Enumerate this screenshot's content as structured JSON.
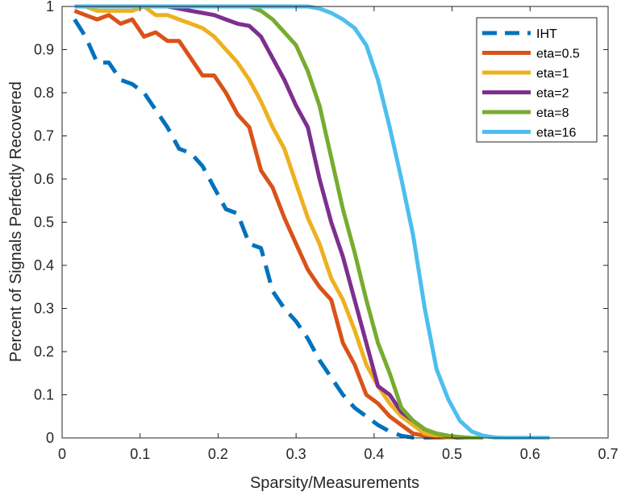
{
  "chart_data": {
    "type": "line",
    "title": "",
    "xlabel": "Sparsity/Measurements",
    "ylabel": "Percent of Signals Perfectly Recovered",
    "xlim": [
      0,
      0.7
    ],
    "ylim": [
      0,
      1
    ],
    "xticks": [
      0,
      0.1,
      0.2,
      0.3,
      0.4,
      0.5,
      0.6,
      0.7
    ],
    "yticks": [
      0,
      0.1,
      0.2,
      0.3,
      0.4,
      0.5,
      0.6,
      0.7,
      0.8,
      0.9,
      1
    ],
    "xtick_labels": [
      "0",
      "0.1",
      "0.2",
      "0.3",
      "0.4",
      "0.5",
      "0.6",
      "0.7"
    ],
    "ytick_labels": [
      "0",
      "0.1",
      "0.2",
      "0.3",
      "0.4",
      "0.5",
      "0.6",
      "0.7",
      "0.8",
      "0.9",
      "1"
    ],
    "grid": false,
    "legend_position": "top-right",
    "series": [
      {
        "name": "IHT",
        "color": "#0072BD",
        "dash": "dashed",
        "x": [
          0.016,
          0.03,
          0.045,
          0.06,
          0.075,
          0.09,
          0.105,
          0.12,
          0.135,
          0.15,
          0.165,
          0.18,
          0.195,
          0.21,
          0.225,
          0.24,
          0.255,
          0.27,
          0.285,
          0.3,
          0.315,
          0.33,
          0.345,
          0.36,
          0.375,
          0.39,
          0.405,
          0.42,
          0.435,
          0.45,
          0.465,
          0.48
        ],
        "y": [
          0.97,
          0.93,
          0.87,
          0.87,
          0.83,
          0.82,
          0.8,
          0.76,
          0.72,
          0.67,
          0.66,
          0.63,
          0.58,
          0.53,
          0.52,
          0.45,
          0.44,
          0.34,
          0.3,
          0.27,
          0.23,
          0.18,
          0.14,
          0.1,
          0.07,
          0.05,
          0.03,
          0.015,
          0.005,
          0.001,
          0,
          0
        ]
      },
      {
        "name": "eta=0.5",
        "color": "#D95319",
        "dash": "solid",
        "x": [
          0.016,
          0.03,
          0.045,
          0.06,
          0.075,
          0.09,
          0.105,
          0.12,
          0.135,
          0.15,
          0.165,
          0.18,
          0.195,
          0.21,
          0.225,
          0.24,
          0.255,
          0.27,
          0.285,
          0.3,
          0.315,
          0.33,
          0.345,
          0.36,
          0.375,
          0.39,
          0.405,
          0.42,
          0.435,
          0.45,
          0.465,
          0.48,
          0.495
        ],
        "y": [
          0.99,
          0.98,
          0.97,
          0.98,
          0.96,
          0.97,
          0.93,
          0.94,
          0.92,
          0.92,
          0.88,
          0.84,
          0.84,
          0.8,
          0.75,
          0.72,
          0.62,
          0.58,
          0.51,
          0.45,
          0.39,
          0.35,
          0.32,
          0.22,
          0.17,
          0.1,
          0.08,
          0.05,
          0.03,
          0.01,
          0.005,
          0,
          0
        ]
      },
      {
        "name": "eta=1",
        "color": "#EDB120",
        "dash": "solid",
        "x": [
          0.016,
          0.03,
          0.045,
          0.06,
          0.075,
          0.09,
          0.105,
          0.12,
          0.135,
          0.15,
          0.165,
          0.18,
          0.195,
          0.21,
          0.225,
          0.24,
          0.255,
          0.27,
          0.285,
          0.3,
          0.315,
          0.33,
          0.345,
          0.36,
          0.375,
          0.39,
          0.405,
          0.42,
          0.435,
          0.45,
          0.465,
          0.48,
          0.495,
          0.51
        ],
        "y": [
          1,
          1,
          0.99,
          0.99,
          0.99,
          0.99,
          1,
          0.98,
          0.98,
          0.97,
          0.96,
          0.95,
          0.93,
          0.9,
          0.87,
          0.83,
          0.78,
          0.72,
          0.67,
          0.59,
          0.51,
          0.45,
          0.37,
          0.32,
          0.25,
          0.17,
          0.12,
          0.08,
          0.05,
          0.03,
          0.01,
          0.005,
          0,
          0
        ]
      },
      {
        "name": "eta=2",
        "color": "#7E2F8E",
        "dash": "solid",
        "x": [
          0.016,
          0.03,
          0.045,
          0.06,
          0.075,
          0.09,
          0.105,
          0.12,
          0.135,
          0.15,
          0.165,
          0.18,
          0.195,
          0.21,
          0.225,
          0.24,
          0.255,
          0.27,
          0.285,
          0.3,
          0.315,
          0.33,
          0.345,
          0.36,
          0.375,
          0.39,
          0.405,
          0.42,
          0.435,
          0.45,
          0.465,
          0.48,
          0.495,
          0.51,
          0.525
        ],
        "y": [
          1,
          1,
          1,
          1,
          1,
          1,
          1,
          1,
          1,
          0.995,
          0.99,
          0.985,
          0.98,
          0.97,
          0.96,
          0.955,
          0.93,
          0.88,
          0.83,
          0.77,
          0.72,
          0.6,
          0.5,
          0.42,
          0.32,
          0.22,
          0.12,
          0.1,
          0.06,
          0.04,
          0.02,
          0.01,
          0.005,
          0,
          0
        ]
      },
      {
        "name": "eta=8",
        "color": "#77AC30",
        "dash": "solid",
        "x": [
          0.016,
          0.03,
          0.045,
          0.06,
          0.075,
          0.09,
          0.105,
          0.12,
          0.135,
          0.15,
          0.165,
          0.18,
          0.195,
          0.21,
          0.225,
          0.24,
          0.255,
          0.27,
          0.285,
          0.3,
          0.315,
          0.33,
          0.345,
          0.36,
          0.375,
          0.39,
          0.405,
          0.42,
          0.435,
          0.45,
          0.465,
          0.48,
          0.495,
          0.51,
          0.525,
          0.54
        ],
        "y": [
          1,
          1,
          1,
          1,
          1,
          1,
          1,
          1,
          1,
          1,
          1,
          1,
          1,
          1,
          1,
          1,
          0.99,
          0.97,
          0.94,
          0.91,
          0.85,
          0.77,
          0.65,
          0.53,
          0.43,
          0.32,
          0.22,
          0.15,
          0.07,
          0.04,
          0.02,
          0.01,
          0.005,
          0.002,
          0,
          0
        ]
      },
      {
        "name": "eta=16",
        "color": "#4DBEEE",
        "dash": "solid",
        "x": [
          0.016,
          0.05,
          0.1,
          0.15,
          0.2,
          0.25,
          0.3,
          0.315,
          0.33,
          0.345,
          0.36,
          0.375,
          0.39,
          0.405,
          0.42,
          0.435,
          0.45,
          0.465,
          0.48,
          0.495,
          0.51,
          0.525,
          0.54,
          0.555,
          0.57,
          0.585,
          0.6,
          0.625
        ],
        "y": [
          1,
          1,
          1,
          1,
          1,
          1,
          1,
          1,
          0.995,
          0.985,
          0.97,
          0.95,
          0.91,
          0.83,
          0.72,
          0.6,
          0.47,
          0.3,
          0.16,
          0.09,
          0.04,
          0.015,
          0.005,
          0.001,
          0,
          0,
          0,
          0
        ]
      }
    ]
  }
}
